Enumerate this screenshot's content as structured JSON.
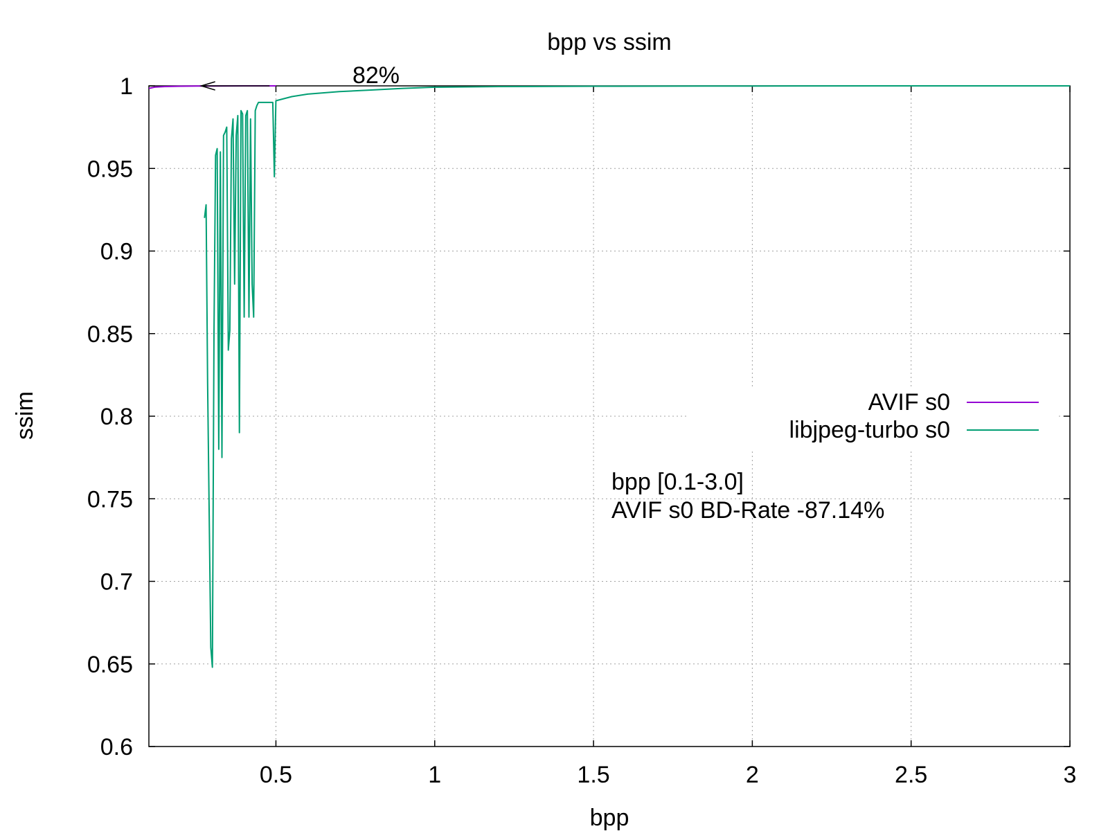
{
  "chart_data": {
    "type": "line",
    "title": "bpp vs ssim",
    "xlabel": "bpp",
    "ylabel": "ssim",
    "xlim": [
      0.1,
      3.0
    ],
    "ylim": [
      0.6,
      1.0
    ],
    "xticks": [
      0.5,
      1,
      1.5,
      2,
      2.5,
      3
    ],
    "xtick_labels": [
      "0.5",
      "1",
      "1.5",
      "2",
      "2.5",
      "3"
    ],
    "yticks": [
      0.6,
      0.65,
      0.7,
      0.75,
      0.8,
      0.85,
      0.9,
      0.95,
      1.0
    ],
    "ytick_labels": [
      "0.6",
      "0.65",
      "0.7",
      "0.75",
      "0.8",
      "0.85",
      "0.9",
      "0.95",
      "1"
    ],
    "grid": true,
    "legend_position": "right",
    "series": [
      {
        "name": "AVIF s0",
        "color": "#9400d3",
        "x": [
          0.1,
          0.12,
          0.15,
          0.2,
          0.25,
          0.3,
          0.4,
          0.5
        ],
        "y": [
          0.9985,
          0.9993,
          0.9996,
          0.9998,
          0.9999,
          0.9999,
          1.0,
          1.0
        ]
      },
      {
        "name": "libjpeg-turbo s0",
        "color": "#009e73",
        "x": [
          0.275,
          0.28,
          0.285,
          0.29,
          0.295,
          0.3,
          0.305,
          0.31,
          0.315,
          0.32,
          0.325,
          0.33,
          0.335,
          0.34,
          0.345,
          0.35,
          0.355,
          0.36,
          0.365,
          0.37,
          0.375,
          0.38,
          0.385,
          0.39,
          0.395,
          0.4,
          0.405,
          0.41,
          0.415,
          0.42,
          0.425,
          0.43,
          0.435,
          0.44,
          0.445,
          0.45,
          0.47,
          0.49,
          0.495,
          0.5,
          0.55,
          0.6,
          0.7,
          0.8,
          0.9,
          1.0,
          1.2,
          1.5,
          2.0,
          2.5,
          3.0
        ],
        "y": [
          0.92,
          0.928,
          0.82,
          0.74,
          0.66,
          0.648,
          0.85,
          0.958,
          0.962,
          0.78,
          0.96,
          0.775,
          0.97,
          0.972,
          0.975,
          0.84,
          0.852,
          0.968,
          0.98,
          0.88,
          0.97,
          0.982,
          0.79,
          0.985,
          0.983,
          0.86,
          0.982,
          0.985,
          0.86,
          0.98,
          0.88,
          0.86,
          0.985,
          0.988,
          0.99,
          0.99,
          0.99,
          0.99,
          0.945,
          0.991,
          0.9935,
          0.995,
          0.9965,
          0.9975,
          0.9985,
          0.9992,
          0.9996,
          0.9998,
          0.9999,
          1.0,
          1.0
        ]
      }
    ],
    "annotations": [
      {
        "text": "82%"
      }
    ],
    "bd_rate_note": {
      "line1": "bpp [0.1-3.0]",
      "line2": "AVIF s0 BD-Rate -87.14%",
      "color": "#00ff00"
    },
    "arrow": {
      "x_from": 0.48,
      "x_to": 0.265,
      "y": 1.0
    }
  }
}
